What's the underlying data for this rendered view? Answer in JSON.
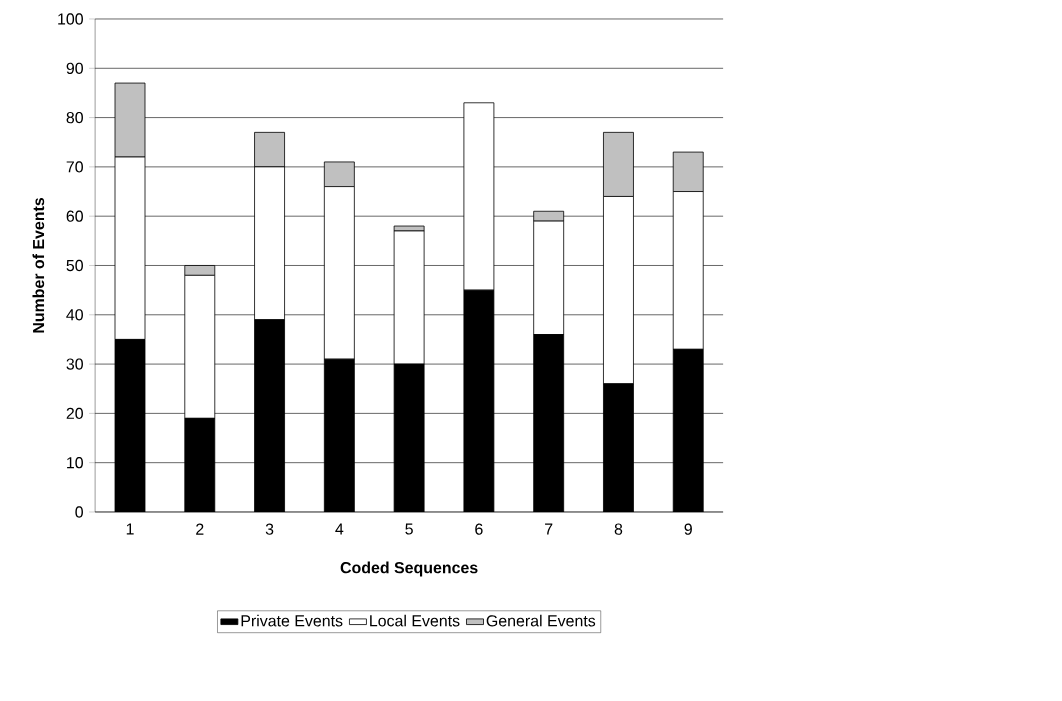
{
  "chart_data": {
    "type": "bar",
    "stacked": true,
    "xlabel": "Coded Sequences",
    "ylabel": "Number of Events",
    "categories": [
      "1",
      "2",
      "3",
      "4",
      "5",
      "6",
      "7",
      "8",
      "9"
    ],
    "series": [
      {
        "name": "Private Events",
        "color": "#000000",
        "values": [
          35,
          19,
          39,
          31,
          30,
          45,
          36,
          26,
          33
        ]
      },
      {
        "name": "Local Events",
        "color": "#ffffff",
        "values": [
          37,
          29,
          31,
          35,
          27,
          38,
          23,
          38,
          32
        ]
      },
      {
        "name": "General Events",
        "color": "#c0c0c0",
        "values": [
          15,
          2,
          7,
          5,
          1,
          0,
          2,
          13,
          8
        ]
      }
    ],
    "ylim": [
      0,
      100
    ],
    "yticks": [
      0,
      10,
      20,
      30,
      40,
      50,
      60,
      70,
      80,
      90,
      100
    ],
    "grid": "y",
    "legend": "bottom"
  }
}
